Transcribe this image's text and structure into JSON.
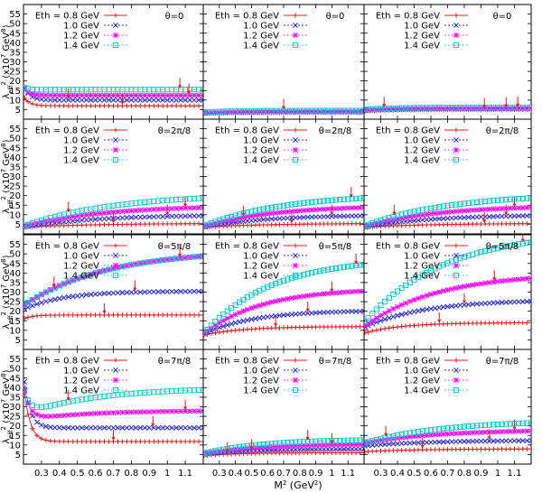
{
  "figure": {
    "ylabel_main": "λ",
    "ylabel_sub": "eff",
    "ylabel_sup": "2",
    "ylabel_unit": "(x10",
    "ylabel_unit_sup": "7",
    "ylabel_unit_tail": " GeV",
    "ylabel_unit_sup2": "8",
    "ylabel_close": ")",
    "xlabel_main": "M",
    "xlabel_sup": "2",
    "xlabel_tail": " (GeV",
    "xlabel_sup2": "2",
    "xlabel_close": ")"
  },
  "chart_data": {
    "type": "line",
    "x": [
      0.205,
      0.225,
      0.25,
      0.275,
      0.3,
      0.325,
      0.35,
      0.375,
      0.4,
      0.425,
      0.45,
      0.475,
      0.5,
      0.525,
      0.55,
      0.575,
      0.6,
      0.625,
      0.65,
      0.675,
      0.7,
      0.725,
      0.75,
      0.775,
      0.8,
      0.825,
      0.85,
      0.875,
      0.9,
      0.925,
      0.95,
      0.975,
      1.0,
      1.025,
      1.05,
      1.075,
      1.1,
      1.125,
      1.15,
      1.175,
      1.2
    ],
    "xlim": [
      0.2,
      1.2
    ],
    "ylim": [
      0,
      60
    ],
    "xticks": [
      "0.3",
      "0.4",
      "0.5",
      "0.6",
      "0.7",
      "0.8",
      "0.9",
      "1",
      "1.1"
    ],
    "yticks": [
      "5",
      "10",
      "15",
      "20",
      "25",
      "30",
      "35",
      "40",
      "45",
      "50",
      "55"
    ],
    "legend_title": "Eth =",
    "legend": [
      "0.8 GeV",
      "1.0 GeV",
      "1.2 GeV",
      "1.4 GeV"
    ],
    "colors": [
      "#e8191b",
      "#2b2bd8",
      "#ff00ff",
      "#00c8c8"
    ],
    "markers": [
      "plus",
      "cross",
      "star",
      "square"
    ],
    "panels": [
      {
        "theta": "θ=0",
        "labels": true,
        "series": [
          {
            "a": 7,
            "b": 0.3,
            "k": 25,
            "c": 5,
            "p": 0
          },
          {
            "a": 10,
            "b": 0.35,
            "k": 25,
            "c": 8,
            "p": 0
          },
          {
            "a": 12.5,
            "b": 1.2,
            "k": 25,
            "c": 5,
            "p": 0
          },
          {
            "a": 15.5,
            "b": 1.8,
            "k": 22,
            "c": 3,
            "p": 0
          }
        ],
        "arrows": [
          [
            0.45,
            1
          ],
          [
            0.75,
            0
          ],
          [
            1.07,
            3
          ],
          [
            1.12,
            2
          ]
        ]
      },
      {
        "theta": "θ=0",
        "labels": true,
        "series": [
          {
            "a": 3.5,
            "b": 0.6,
            "k": 5,
            "c": 0,
            "p": 0
          },
          {
            "a": 3.8,
            "b": 0.7,
            "k": 5,
            "c": 0,
            "p": 0
          },
          {
            "a": 4.1,
            "b": 0.8,
            "k": 5,
            "c": 0,
            "p": 0
          },
          {
            "a": 4.5,
            "b": 0.9,
            "k": 5,
            "c": 0,
            "p": 0
          }
        ],
        "arrows": [
          [
            0.7,
            3
          ]
        ]
      },
      {
        "theta": "θ=0",
        "labels": true,
        "series": [
          {
            "a": 5,
            "b": 0.8,
            "k": 5,
            "c": 0,
            "p": 0
          },
          {
            "a": 5.4,
            "b": 0.9,
            "k": 5,
            "c": 0,
            "p": 0
          },
          {
            "a": 5.8,
            "b": 1.0,
            "k": 5,
            "c": 0,
            "p": 0
          },
          {
            "a": 6.2,
            "b": 1.1,
            "k": 5,
            "c": 0,
            "p": 0
          }
        ],
        "arrows": [
          [
            0.32,
            3
          ],
          [
            0.92,
            0
          ],
          [
            1.05,
            1
          ],
          [
            1.12,
            2
          ]
        ]
      },
      {
        "theta": "θ=2π/8",
        "labels": true,
        "series": [
          {
            "a": 5.5,
            "b": 2.0,
            "k": 2.5,
            "c": 0,
            "p": 0
          },
          {
            "a": 10,
            "b": 6.5,
            "k": 2.5,
            "c": 0,
            "p": 0
          },
          {
            "a": 15,
            "b": 11,
            "k": 2.2,
            "c": 0,
            "p": 0
          },
          {
            "a": 21,
            "b": 17,
            "k": 2.0,
            "c": 0,
            "p": 0
          }
        ],
        "arrows": [
          [
            0.45,
            3
          ],
          [
            0.7,
            0
          ],
          [
            1.0,
            1
          ],
          [
            1.1,
            2
          ]
        ]
      },
      {
        "theta": "θ=2π/8",
        "labels": true,
        "series": [
          {
            "a": 5.5,
            "b": 2.0,
            "k": 2.5,
            "c": 0,
            "p": 0
          },
          {
            "a": 10,
            "b": 6.5,
            "k": 2.5,
            "c": 0,
            "p": 0
          },
          {
            "a": 15,
            "b": 11,
            "k": 2.2,
            "c": 0,
            "p": 0
          },
          {
            "a": 21,
            "b": 17,
            "k": 2.0,
            "c": 0,
            "p": 0
          }
        ],
        "arrows": [
          [
            0.45,
            2
          ],
          [
            0.75,
            0
          ],
          [
            1.0,
            1
          ],
          [
            1.12,
            3
          ]
        ]
      },
      {
        "theta": "θ=2π/8",
        "labels": true,
        "series": [
          {
            "a": 5.5,
            "b": 2.0,
            "k": 2.5,
            "c": 0,
            "p": 0
          },
          {
            "a": 10,
            "b": 6.5,
            "k": 2.5,
            "c": 0,
            "p": 0
          },
          {
            "a": 15,
            "b": 11,
            "k": 2.2,
            "c": 0,
            "p": 0
          },
          {
            "a": 21,
            "b": 17,
            "k": 2.0,
            "c": 0,
            "p": 0
          }
        ],
        "arrows": [
          [
            0.38,
            3
          ],
          [
            0.92,
            0
          ],
          [
            1.05,
            1
          ],
          [
            1.1,
            2
          ]
        ]
      },
      {
        "theta": "θ=5π/8",
        "labels": true,
        "series": [
          {
            "a": 18,
            "b": 2,
            "k": 20,
            "c": 0,
            "p": 0
          },
          {
            "a": 30.5,
            "b": 9.5,
            "k": 4.5,
            "c": 0,
            "p": 0
          },
          {
            "a": 52,
            "b": 29,
            "k": 2.2,
            "c": 0,
            "p": 0
          },
          {
            "a": 52,
            "b": 29,
            "k": 2.2,
            "c": 0,
            "p": 0
          }
        ],
        "arrows": [
          [
            0.37,
            2
          ],
          [
            0.65,
            0
          ],
          [
            0.82,
            1
          ],
          [
            1.07,
            3
          ]
        ]
      },
      {
        "theta": "θ=5π/8",
        "labels": true,
        "series": [
          {
            "a": 12,
            "b": 4.5,
            "k": 4,
            "c": 0,
            "p": 0
          },
          {
            "a": 20.5,
            "b": 12.5,
            "k": 3.2,
            "c": 0,
            "p": 0
          },
          {
            "a": 32,
            "b": 24,
            "k": 2.8,
            "c": 0,
            "p": 0
          },
          {
            "a": 48,
            "b": 40,
            "k": 2.4,
            "c": 0,
            "p": 0
          }
        ],
        "arrows": [
          [
            0.65,
            0
          ],
          [
            0.85,
            1
          ],
          [
            1.0,
            2
          ],
          [
            1.15,
            3
          ]
        ]
      },
      {
        "theta": "θ=5π/8",
        "labels": true,
        "series": [
          {
            "a": 14,
            "b": 5.5,
            "k": 4.5,
            "c": 0,
            "p": 0
          },
          {
            "a": 26,
            "b": 14.5,
            "k": 2.8,
            "c": 0,
            "p": 0
          },
          {
            "a": 40,
            "b": 28,
            "k": 2.3,
            "c": 0,
            "p": 0
          },
          {
            "a": 62,
            "b": 48,
            "k": 2.1,
            "c": 0,
            "p": 0
          }
        ],
        "arrows": [
          [
            0.65,
            0
          ],
          [
            0.8,
            1
          ],
          [
            0.98,
            2
          ],
          [
            1.15,
            3
          ]
        ]
      },
      {
        "theta": "θ=7π/8",
        "labels": true,
        "series": [
          {
            "a": 11.8,
            "b": 0,
            "k": 20,
            "c": 30,
            "p": 0
          },
          {
            "a": 19,
            "b": 0,
            "k": 20,
            "c": 28,
            "p": 0
          },
          {
            "a": 28,
            "b": 5,
            "k": 3,
            "c": 18,
            "p": 0
          },
          {
            "a": 40,
            "b": 14,
            "k": 2.5,
            "c": 14,
            "p": 0
          }
        ],
        "arrows": [
          [
            0.45,
            3
          ],
          [
            0.7,
            0
          ],
          [
            0.92,
            1
          ],
          [
            1.1,
            2
          ]
        ]
      },
      {
        "theta": "θ=7π/8",
        "labels": true,
        "series": [
          {
            "a": 6,
            "b": 1.5,
            "k": 4,
            "c": 0,
            "p": 0
          },
          {
            "a": 8,
            "b": 3,
            "k": 3.5,
            "c": 0,
            "p": 0
          },
          {
            "a": 10.5,
            "b": 5,
            "k": 3,
            "c": 0,
            "p": 0
          },
          {
            "a": 13,
            "b": 7.5,
            "k": 2.8,
            "c": 0,
            "p": 0
          }
        ],
        "arrows": [
          [
            0.35,
            0
          ],
          [
            0.5,
            1
          ],
          [
            0.85,
            3
          ],
          [
            1.0,
            2
          ]
        ]
      },
      {
        "theta": "θ=7π/8",
        "labels": true,
        "series": [
          {
            "a": 8,
            "b": 1.5,
            "k": 3,
            "c": 0,
            "p": 0
          },
          {
            "a": 12.5,
            "b": 3,
            "k": 2.6,
            "c": 0,
            "p": 0
          },
          {
            "a": 18,
            "b": 7,
            "k": 2.3,
            "c": 0,
            "p": 0
          },
          {
            "a": 23,
            "b": 12,
            "k": 2.1,
            "c": 0,
            "p": 0
          }
        ],
        "arrows": [
          [
            0.33,
            3
          ],
          [
            0.55,
            0
          ],
          [
            0.95,
            1
          ],
          [
            1.1,
            2
          ]
        ]
      }
    ]
  }
}
